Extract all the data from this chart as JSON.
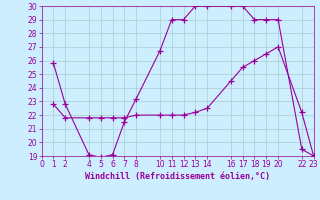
{
  "xlabel": "Windchill (Refroidissement éolien,°C)",
  "line1_x": [
    1,
    2,
    4,
    5,
    6,
    7,
    8,
    10,
    11,
    12,
    13,
    14,
    16,
    17,
    18,
    19,
    20,
    22,
    23
  ],
  "line1_y": [
    25.8,
    22.8,
    19.1,
    18.9,
    19.1,
    21.5,
    23.2,
    26.7,
    29.0,
    29.0,
    30.0,
    30.0,
    30.0,
    30.0,
    29.0,
    29.0,
    29.0,
    19.5,
    19.0
  ],
  "line2_x": [
    1,
    2,
    4,
    5,
    6,
    7,
    8,
    10,
    11,
    12,
    13,
    14,
    16,
    17,
    18,
    19,
    20,
    22,
    23
  ],
  "line2_y": [
    22.8,
    21.8,
    21.8,
    21.8,
    21.8,
    21.8,
    22.0,
    22.0,
    22.0,
    22.0,
    22.2,
    22.5,
    24.5,
    25.5,
    26.0,
    26.5,
    27.0,
    22.2,
    19.0
  ],
  "line_color": "#990099",
  "bg_color": "#cceeff",
  "grid_color": "#aacccc",
  "axis_color": "#990099",
  "tick_color": "#990099",
  "xlim": [
    0,
    23
  ],
  "ylim": [
    19,
    30
  ],
  "xticks": [
    0,
    1,
    2,
    4,
    5,
    6,
    7,
    8,
    10,
    11,
    12,
    13,
    14,
    16,
    17,
    18,
    19,
    20,
    22,
    23
  ],
  "yticks": [
    19,
    20,
    21,
    22,
    23,
    24,
    25,
    26,
    27,
    28,
    29,
    30
  ],
  "tick_fontsize": 5.5,
  "label_fontsize": 6.0
}
